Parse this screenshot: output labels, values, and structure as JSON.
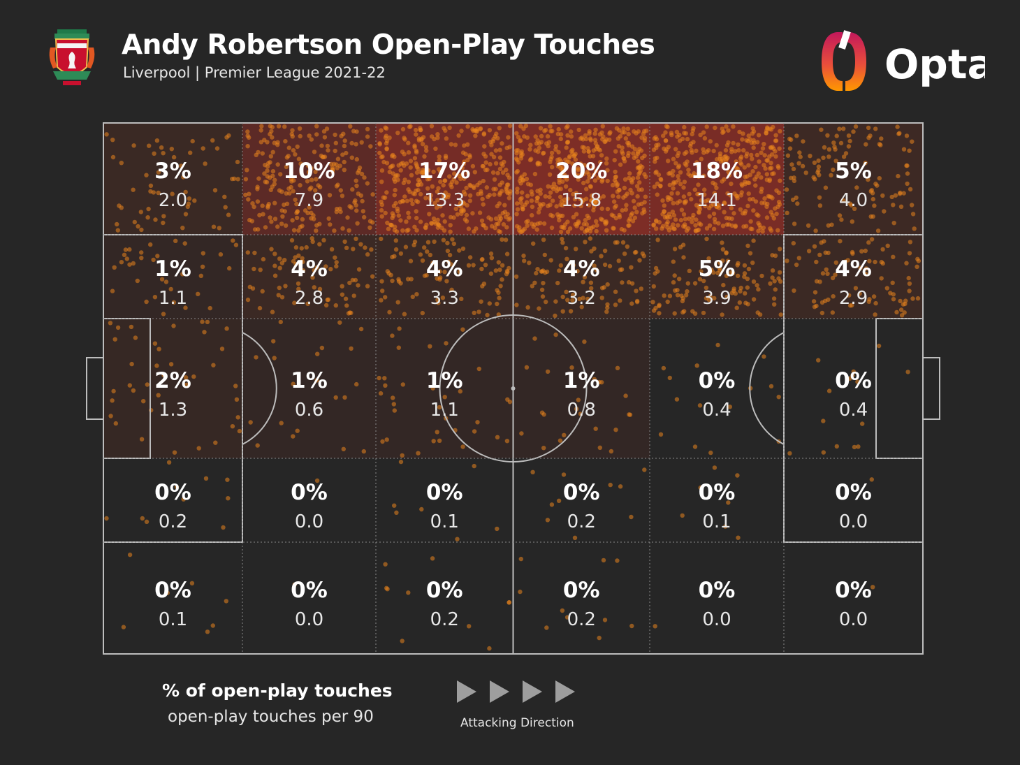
{
  "header": {
    "title": "Andy Robertson Open-Play Touches",
    "subtitle": "Liverpool | Premier League 2021-22",
    "club_crest_icon": "liverpool-crest-icon",
    "provider_logo_icon": "opta-logo-icon",
    "provider_name": "Opta"
  },
  "legend": {
    "percent_label": "% of open-play touches",
    "value_label": "open-play touches per 90",
    "direction_label": "Attacking Direction",
    "direction_icon": "play-arrow-icon"
  },
  "colors": {
    "background": "#262626",
    "pitch_lines": "#bdbdbd",
    "touch_dots": "#e8831e",
    "heat_high": "#c0392b",
    "opta_gradient": [
      "#c2185b",
      "#ff9800"
    ]
  },
  "chart_data": {
    "type": "heatmap",
    "title": "Andy Robertson Open-Play Touches",
    "orientation": "attacking left-to-right; rows top (left touchline) to bottom",
    "columns": 6,
    "rows": 5,
    "cells": [
      [
        {
          "pct": "3%",
          "val": "2.0",
          "p": 3
        },
        {
          "pct": "10%",
          "val": "7.9",
          "p": 10
        },
        {
          "pct": "17%",
          "val": "13.3",
          "p": 17
        },
        {
          "pct": "20%",
          "val": "15.8",
          "p": 20
        },
        {
          "pct": "18%",
          "val": "14.1",
          "p": 18
        },
        {
          "pct": "5%",
          "val": "4.0",
          "p": 5
        }
      ],
      [
        {
          "pct": "1%",
          "val": "1.1",
          "p": 1
        },
        {
          "pct": "4%",
          "val": "2.8",
          "p": 4
        },
        {
          "pct": "4%",
          "val": "3.3",
          "p": 4
        },
        {
          "pct": "4%",
          "val": "3.2",
          "p": 4
        },
        {
          "pct": "5%",
          "val": "3.9",
          "p": 5
        },
        {
          "pct": "4%",
          "val": "2.9",
          "p": 4
        }
      ],
      [
        {
          "pct": "2%",
          "val": "1.3",
          "p": 2
        },
        {
          "pct": "1%",
          "val": "0.6",
          "p": 1
        },
        {
          "pct": "1%",
          "val": "1.1",
          "p": 1
        },
        {
          "pct": "1%",
          "val": "0.8",
          "p": 1
        },
        {
          "pct": "0%",
          "val": "0.4",
          "p": 0
        },
        {
          "pct": "0%",
          "val": "0.4",
          "p": 0
        }
      ],
      [
        {
          "pct": "0%",
          "val": "0.2",
          "p": 0
        },
        {
          "pct": "0%",
          "val": "0.0",
          "p": 0
        },
        {
          "pct": "0%",
          "val": "0.1",
          "p": 0
        },
        {
          "pct": "0%",
          "val": "0.2",
          "p": 0
        },
        {
          "pct": "0%",
          "val": "0.1",
          "p": 0
        },
        {
          "pct": "0%",
          "val": "0.0",
          "p": 0
        }
      ],
      [
        {
          "pct": "0%",
          "val": "0.1",
          "p": 0
        },
        {
          "pct": "0%",
          "val": "0.0",
          "p": 0
        },
        {
          "pct": "0%",
          "val": "0.2",
          "p": 0
        },
        {
          "pct": "0%",
          "val": "0.2",
          "p": 0
        },
        {
          "pct": "0%",
          "val": "0.0",
          "p": 0
        },
        {
          "pct": "0%",
          "val": "0.0",
          "p": 0
        }
      ]
    ]
  }
}
